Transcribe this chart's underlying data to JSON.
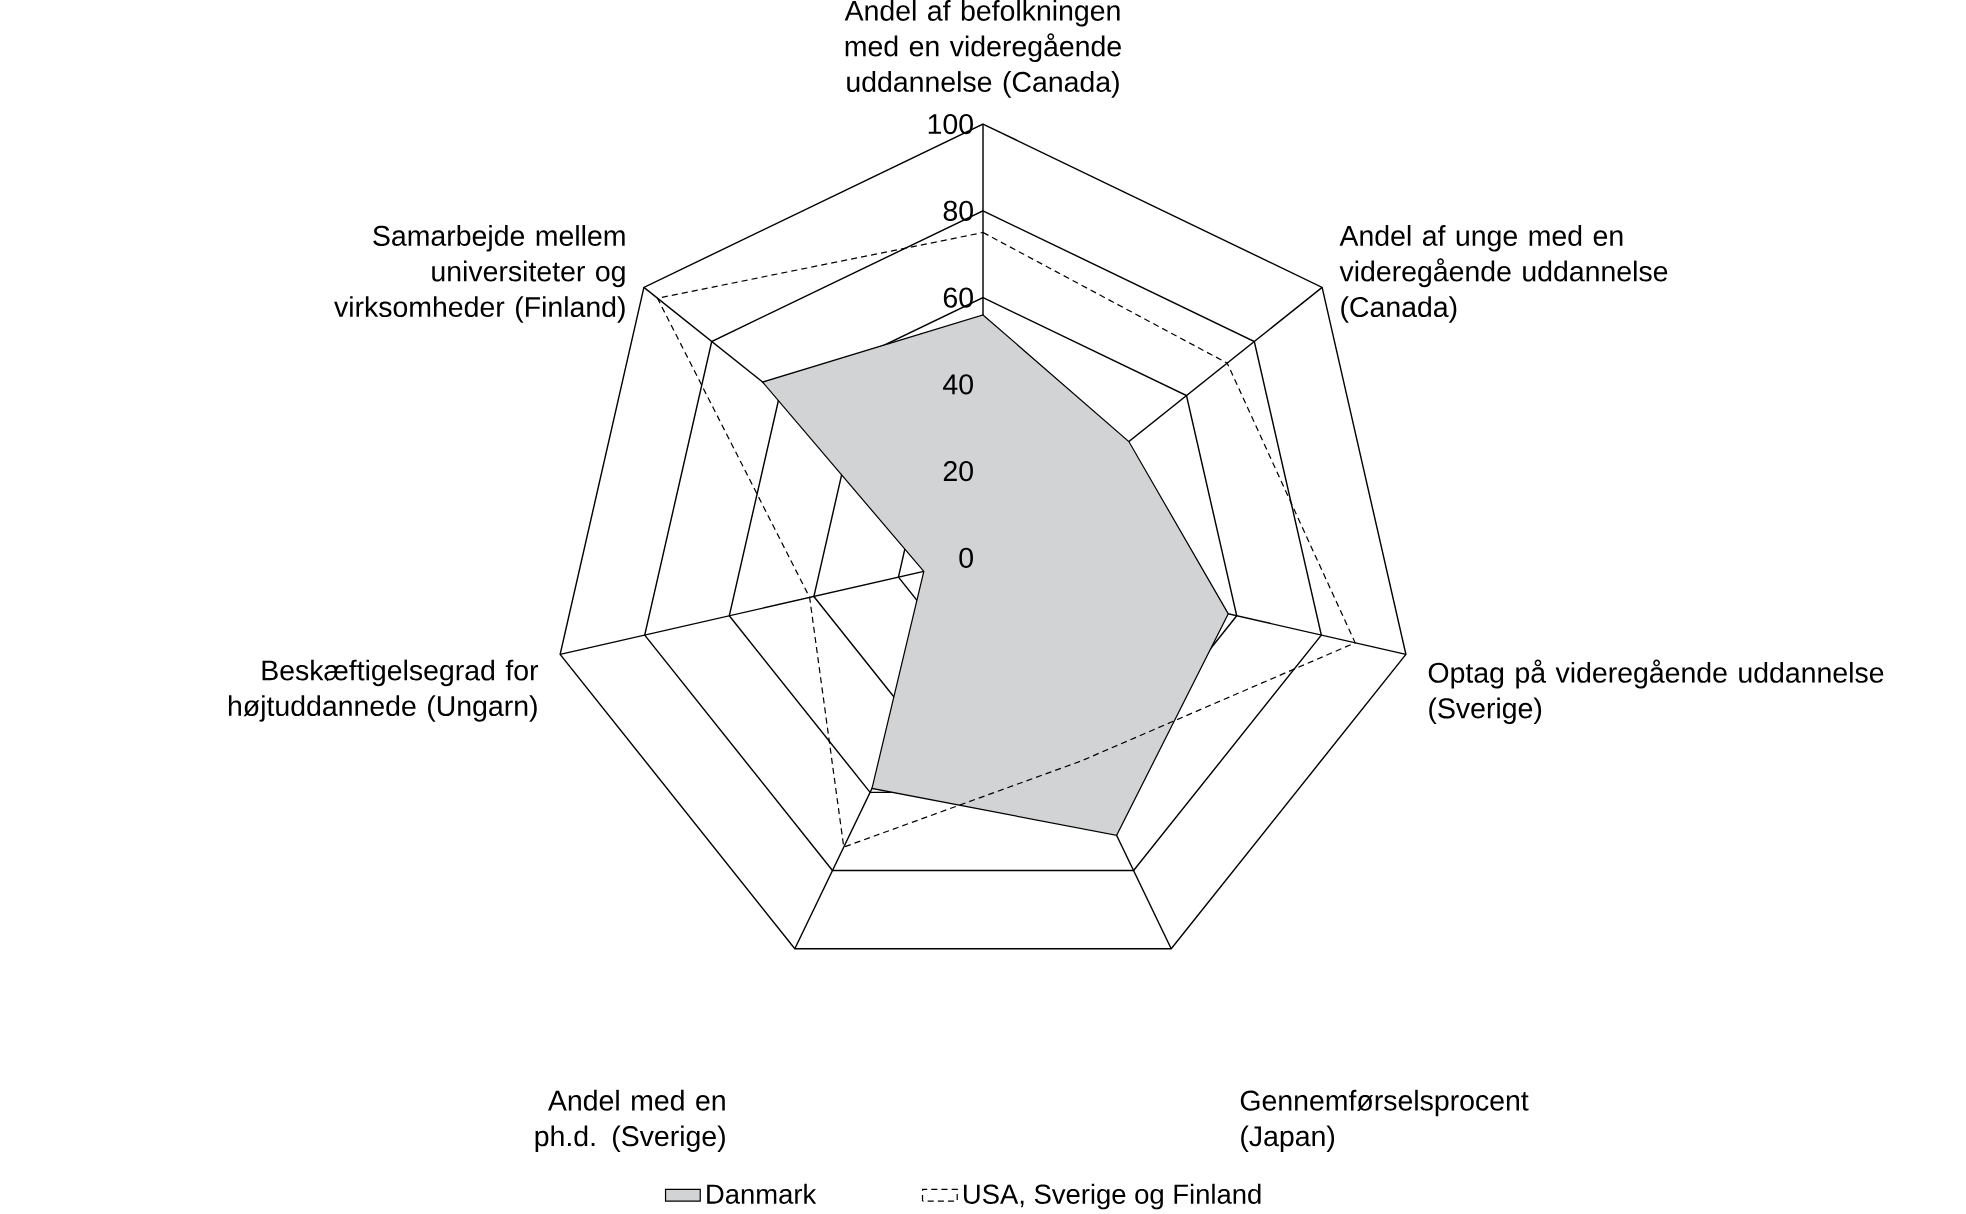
{
  "chart_data": {
    "type": "radar",
    "categories": [
      "Andel af befolkningen med en videregående uddannelse (Canada)",
      "Andel af unge med en videregående uddannelse (Canada)",
      "Optag på videregående uddannelse (Sverige)",
      "Gennemførselsprocent (Japan)",
      "Andel med en ph.d. (Sverige)",
      "Beskæftigelsegrad for højtuddannede (Ungarn)",
      "Samarbejde mellem universiteter og virksomheder (Finland)"
    ],
    "series": [
      {
        "name": "Danmark",
        "color": "#d1d3d4",
        "values": [
          56,
          43,
          58,
          71,
          59,
          14,
          65
        ]
      },
      {
        "name": "USA, Sverige og Finland",
        "color": "#000000",
        "line_style": "dashed",
        "values": [
          75,
          72,
          88,
          52,
          74,
          41,
          96
        ]
      }
    ],
    "ylim": [
      0,
      100
    ],
    "yticks": [
      0,
      20,
      40,
      60,
      80,
      100
    ],
    "grid": true,
    "legend": "bottom"
  }
}
